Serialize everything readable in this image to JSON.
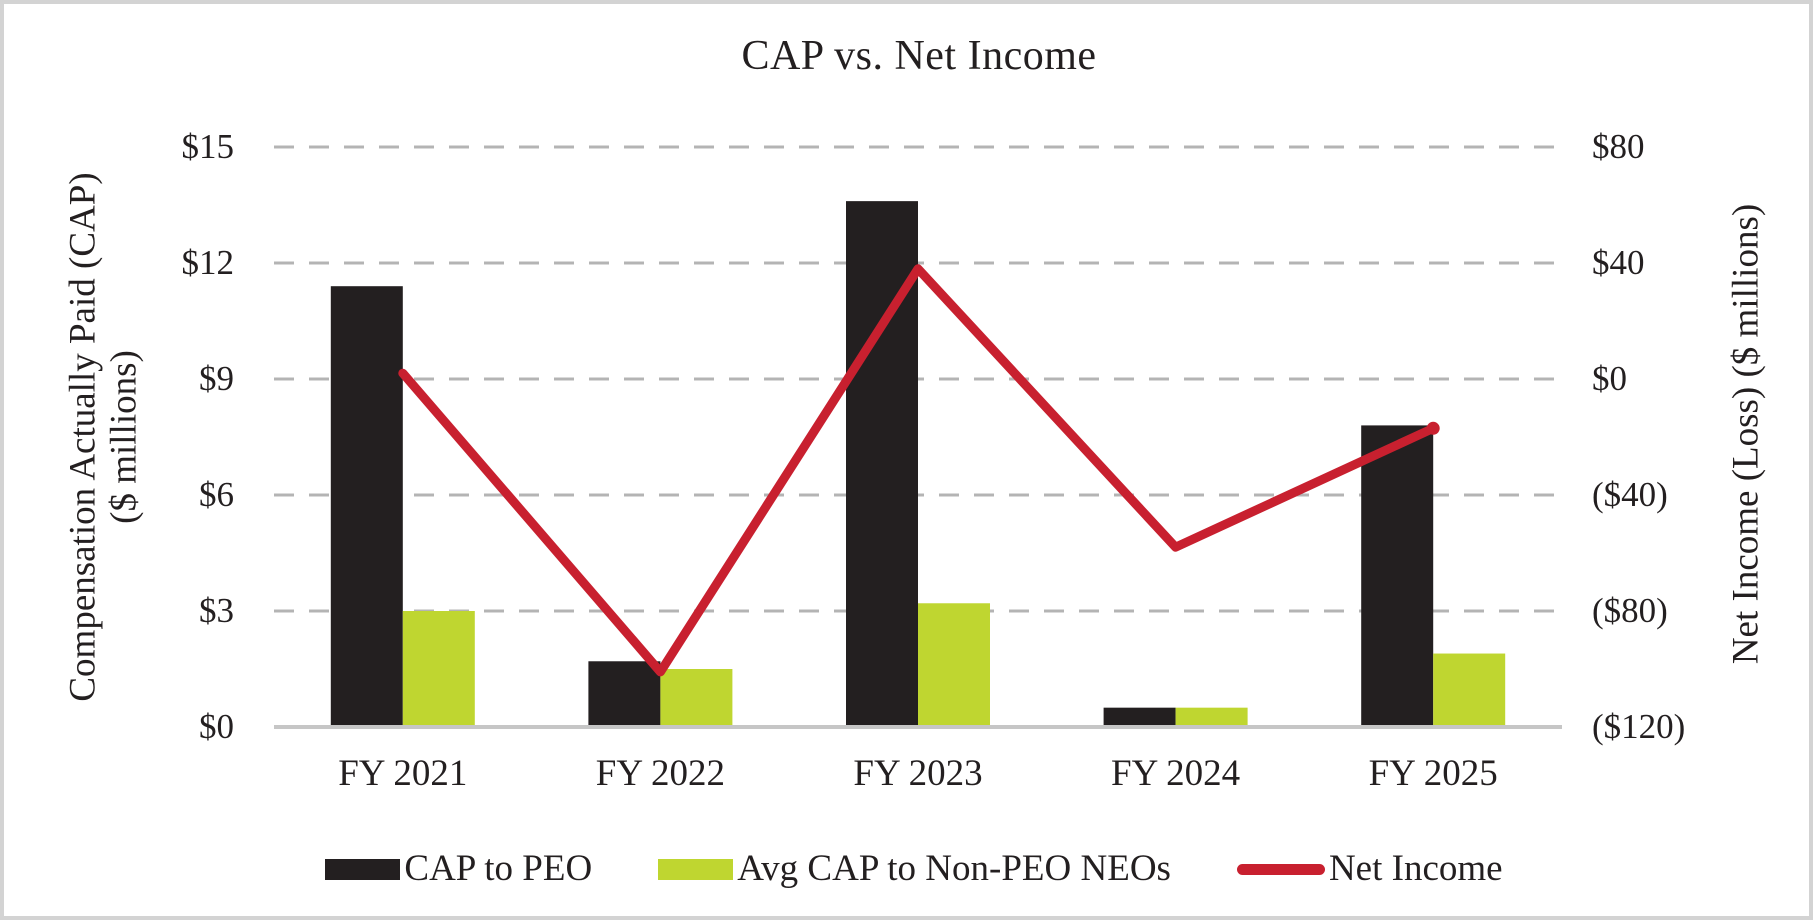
{
  "window": {
    "background_color": "#ffffff",
    "border_color": "#d3d3d3",
    "text_color": "#231f20"
  },
  "chart_data": {
    "type": "bar",
    "subtype": "combo-bar-line-dual-axis",
    "title": "CAP vs. Net Income",
    "categories": [
      "FY 2021",
      "FY 2022",
      "FY 2023",
      "FY 2024",
      "FY 2025"
    ],
    "series": [
      {
        "name": "CAP to PEO",
        "kind": "bar",
        "axis": "left",
        "color": "#231f20",
        "values": [
          11.4,
          1.7,
          13.6,
          0.5,
          7.8
        ]
      },
      {
        "name": "Avg CAP to Non-PEO NEOs",
        "kind": "bar",
        "axis": "left",
        "color": "#bfd630",
        "values": [
          3.0,
          1.5,
          3.2,
          0.5,
          1.9
        ]
      },
      {
        "name": "Net Income",
        "kind": "line",
        "axis": "right",
        "color": "#c8202f",
        "values": [
          2,
          -101,
          38,
          -58,
          -17
        ]
      }
    ],
    "left_axis": {
      "title_line1": "Compensation Actually Paid (CAP)",
      "title_line2": "($ millions)",
      "min": 0,
      "max": 15,
      "step": 3,
      "tick_labels": [
        "$0",
        "$3",
        "$6",
        "$9",
        "$12",
        "$15"
      ]
    },
    "right_axis": {
      "title": "Net Income (Loss) ($ millions)",
      "min": -120,
      "max": 80,
      "step": 40,
      "tick_labels": [
        "($120)",
        "($80)",
        "($40)",
        "$0",
        "$40",
        "$80"
      ]
    },
    "grid": {
      "style": "dashed-horizontal",
      "line_color": "#b4b4b4",
      "baseline_color": "#c6c6c6"
    },
    "legend_position": "bottom"
  }
}
